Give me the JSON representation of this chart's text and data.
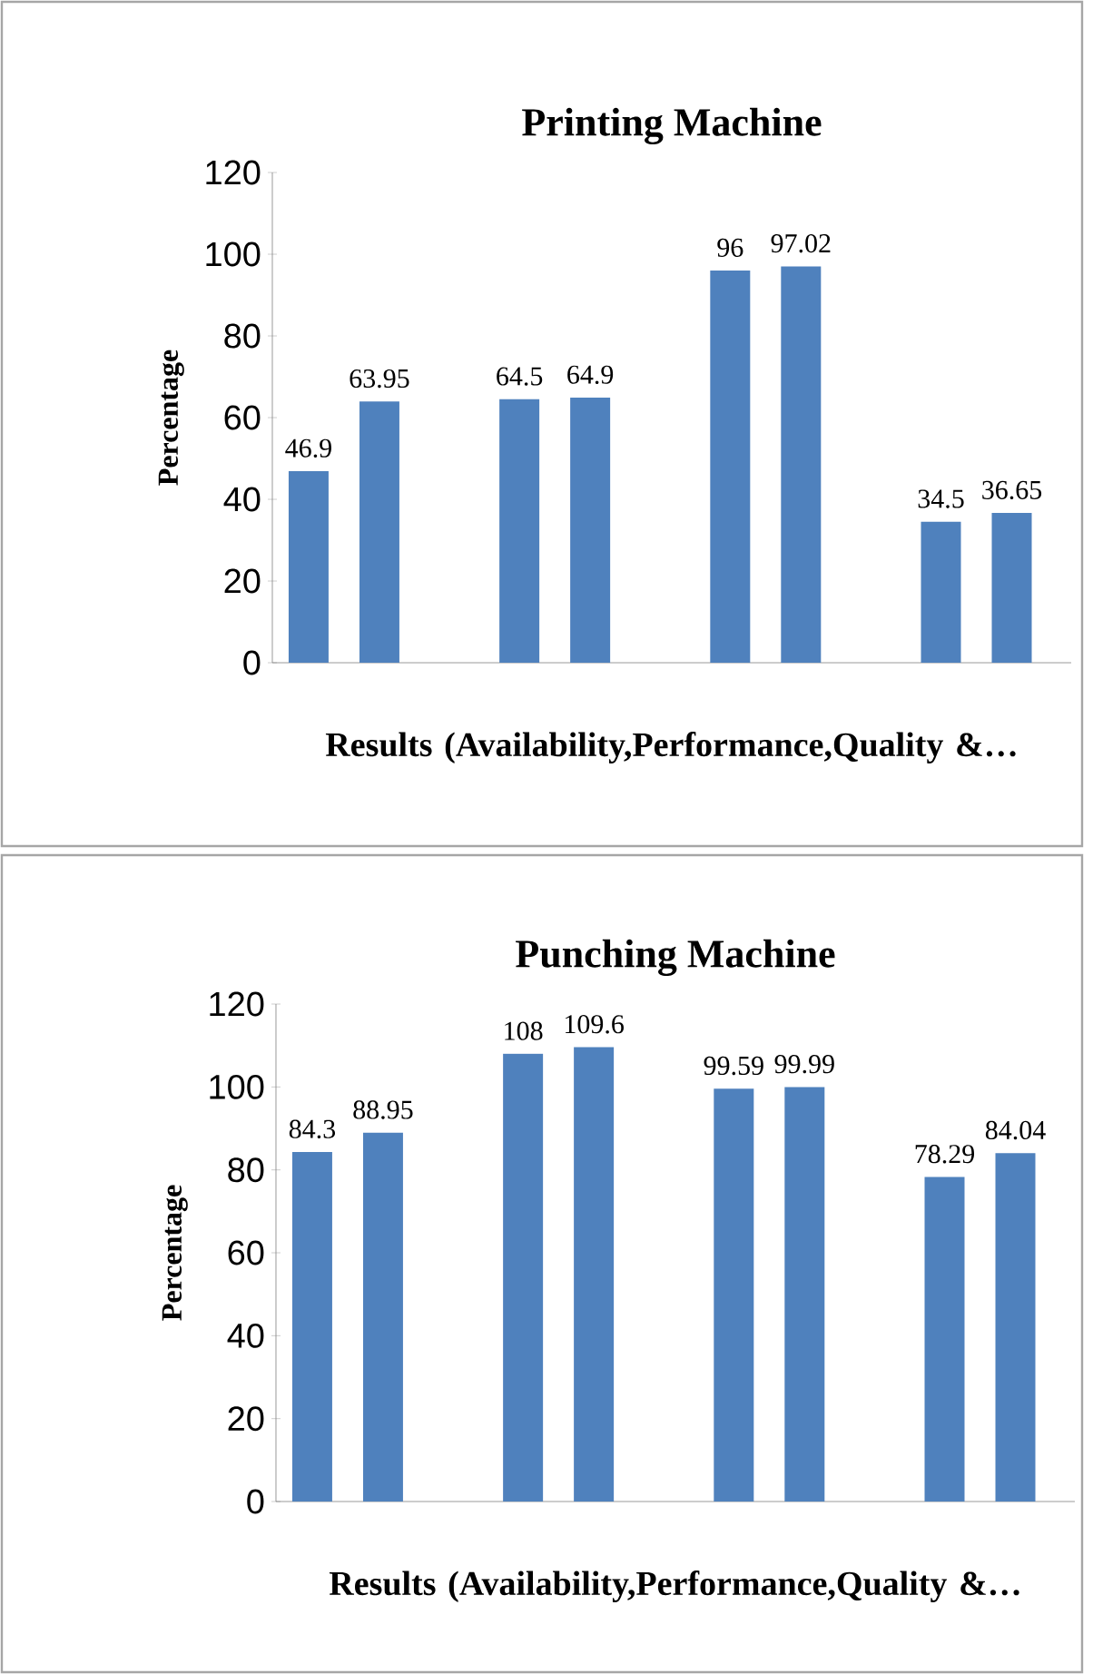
{
  "chart_data": [
    {
      "type": "bar",
      "title": "Printing Machine",
      "xlabel": "Results (Availability,Performance,Quality &…",
      "ylabel": "Percentage",
      "categories": [
        null,
        null,
        null,
        null
      ],
      "series": [
        {
          "color": "#4f81bd",
          "values": [
            46.9,
            64.5,
            96,
            34.5
          ]
        },
        {
          "color": "#4f81bd",
          "values": [
            63.95,
            64.9,
            97.02,
            36.65
          ]
        }
      ],
      "ylim": [
        0,
        120
      ],
      "yticks": [
        0,
        20,
        40,
        60,
        80,
        100,
        120
      ],
      "data_labels": true,
      "grid": false
    },
    {
      "type": "bar",
      "title": "Punching Machine",
      "xlabel": "Results (Availability,Performance,Quality &…",
      "ylabel": "Percentage",
      "categories": [
        null,
        null,
        null,
        null
      ],
      "series": [
        {
          "color": "#4f81bd",
          "values": [
            84.3,
            108,
            99.59,
            78.29
          ]
        },
        {
          "color": "#4f81bd",
          "values": [
            88.95,
            109.6,
            99.99,
            84.04
          ]
        }
      ],
      "ylim": [
        0,
        120
      ],
      "yticks": [
        0,
        20,
        40,
        60,
        80,
        100,
        120
      ],
      "data_labels": true,
      "grid": false
    }
  ]
}
